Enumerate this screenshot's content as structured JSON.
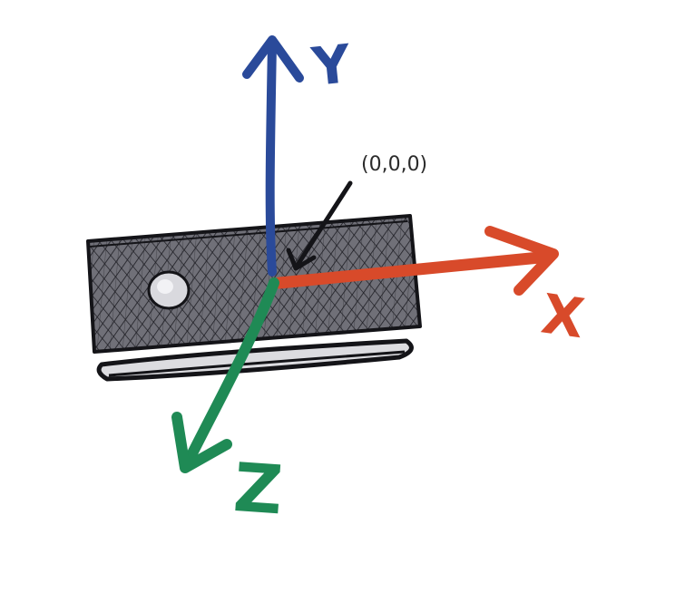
{
  "origin_label": "(0,0,0)",
  "axes": [
    {
      "key": "x",
      "label": "X",
      "color": "#d84a2a"
    },
    {
      "key": "y",
      "label": "Y",
      "color": "#2a4a9a"
    },
    {
      "key": "z",
      "label": "Z",
      "color": "#1f8a55"
    }
  ],
  "colors": {
    "device_fill": "#707078",
    "device_hatch": "#1c1c22",
    "outline": "#141418",
    "background": "#ffffff"
  }
}
